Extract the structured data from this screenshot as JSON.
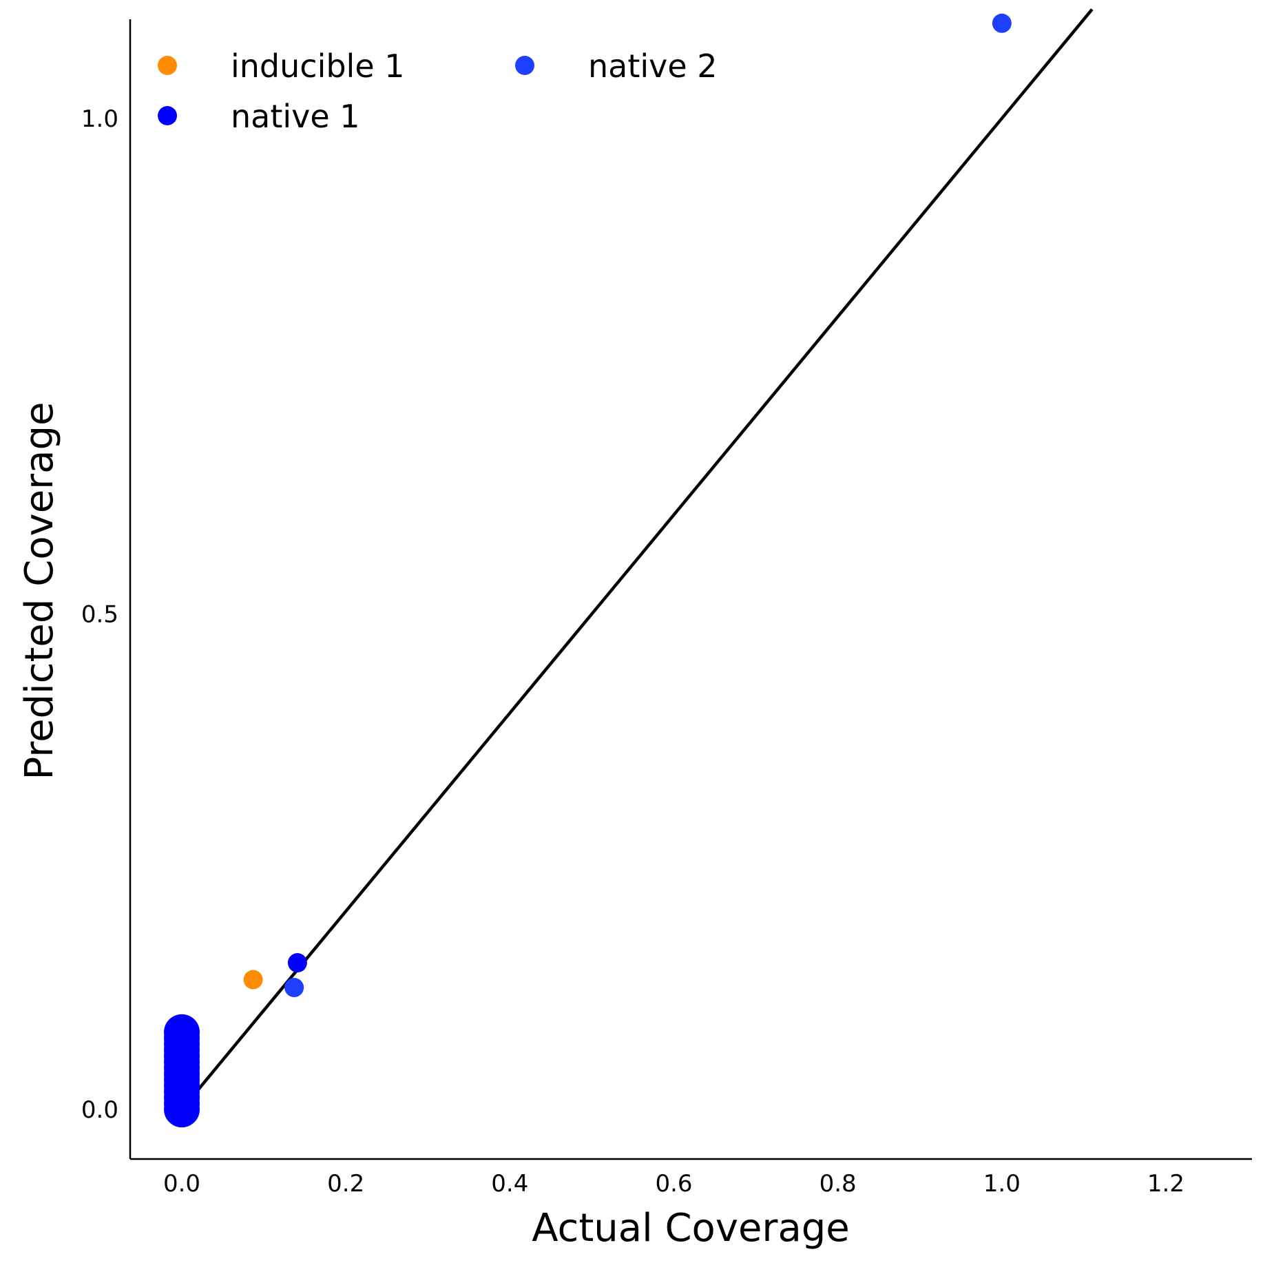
{
  "chart_data": {
    "type": "scatter",
    "xlabel": "Actual Coverage",
    "ylabel": "Predicted Coverage",
    "xlim": [
      -0.063,
      1.305
    ],
    "ylim": [
      -0.05,
      1.1
    ],
    "x_ticks": [
      0.0,
      0.2,
      0.4,
      0.6,
      0.8,
      1.0,
      1.2
    ],
    "y_ticks": [
      0.0,
      0.5,
      1.0
    ],
    "x_tick_labels": [
      "0.0",
      "0.2",
      "0.4",
      "0.6",
      "0.8",
      "1.0",
      "1.2"
    ],
    "y_tick_labels": [
      "0.0",
      "0.5",
      "1.0"
    ],
    "grid": false,
    "legend_position": "top-left",
    "reference_line": {
      "x": [
        0.0,
        1.11
      ],
      "y": [
        0.0,
        1.11
      ],
      "color": "#000000"
    },
    "series": [
      {
        "name": "inducible 1",
        "color": "#FF8C00",
        "points": [
          [
            0.087,
            0.131
          ]
        ]
      },
      {
        "name": "native 1",
        "color": "#0000FF",
        "points": [
          [
            0.141,
            0.148
          ],
          [
            0.0,
            0.0
          ],
          [
            0.0,
            0.006
          ],
          [
            0.0,
            0.012
          ],
          [
            0.0,
            0.018
          ],
          [
            0.0,
            0.024
          ],
          [
            0.0,
            0.03
          ],
          [
            0.0,
            0.036
          ],
          [
            0.0,
            0.042
          ],
          [
            0.0,
            0.048
          ],
          [
            0.0,
            0.054
          ],
          [
            0.0,
            0.06
          ],
          [
            0.0,
            0.066
          ],
          [
            0.0,
            0.072
          ],
          [
            0.0,
            0.078
          ]
        ]
      },
      {
        "name": "native 2",
        "color": "#1F3FFF",
        "points": [
          [
            0.137,
            0.123
          ],
          [
            1.0,
            1.096
          ]
        ]
      }
    ]
  }
}
